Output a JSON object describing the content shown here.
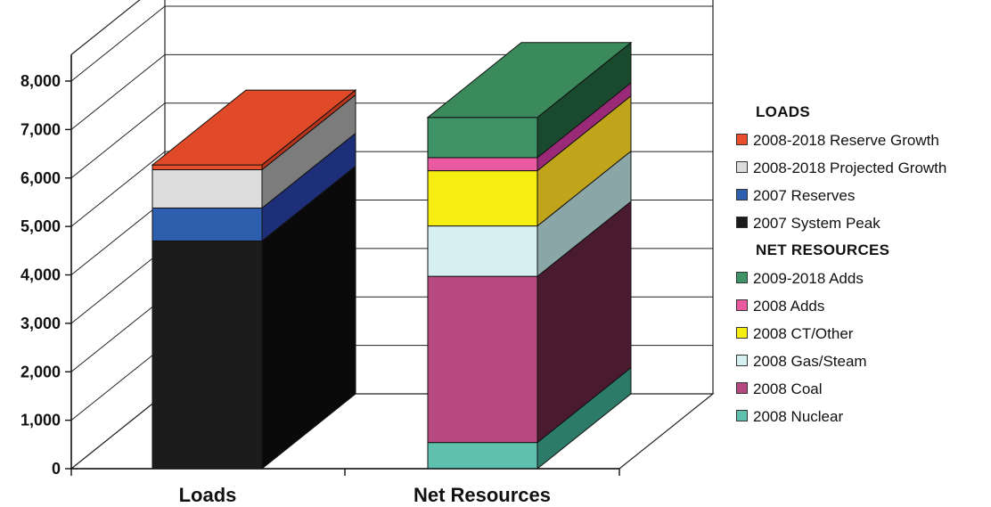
{
  "chart_data": {
    "type": "bar",
    "stacked": true,
    "three_d": true,
    "title": "",
    "xlabel": "",
    "ylabel": "",
    "ylim": [
      0,
      8000
    ],
    "yticks": [
      0,
      1000,
      2000,
      3000,
      4000,
      5000,
      6000,
      7000,
      8000
    ],
    "ytick_labels": [
      "0",
      "1,000",
      "2,000",
      "3,000",
      "4,000",
      "5,000",
      "6,000",
      "7,000",
      "8,000"
    ],
    "categories": [
      "Loads",
      "Net Resources"
    ],
    "grid": true,
    "legend_position": "right",
    "groups": [
      {
        "heading": "LOADS",
        "category_index": 0,
        "series": [
          {
            "name": "2007 System Peak",
            "value": 4700,
            "color": "#1c1c1c",
            "side": "#0a0a0a",
            "top": "#2a2a2a"
          },
          {
            "name": "2007 Reserves",
            "value": 680,
            "color": "#2e5fae",
            "side": "#1e2f7a",
            "top": "#3a6ac0"
          },
          {
            "name": "2008-2018 Projected Growth",
            "value": 790,
            "color": "#dcdcdc",
            "side": "#7c7c7c",
            "top": "#e8e8e8"
          },
          {
            "name": "2008-2018 Reserve Growth",
            "value": 100,
            "color": "#e84e2c",
            "side": "#b8341a",
            "top": "#e04a28"
          }
        ]
      },
      {
        "heading": "NET RESOURCES",
        "category_index": 1,
        "series": [
          {
            "name": "2008 Nuclear",
            "value": 540,
            "color": "#5fc0ae",
            "side": "#2c7a68",
            "top": "#6ccab8"
          },
          {
            "name": "2008 Coal",
            "value": 3430,
            "color": "#b64a80",
            "side": "#4a1a2e",
            "top": "#c05a8c"
          },
          {
            "name": "2008 Gas/Steam",
            "value": 1040,
            "color": "#d6f0f2",
            "side": "#8aa6a6",
            "top": "#e2f6f8"
          },
          {
            "name": "2008 CT/Other",
            "value": 1140,
            "color": "#f6ee10",
            "side": "#c0a41a",
            "top": "#f8f040"
          },
          {
            "name": "2008 Adds",
            "value": 270,
            "color": "#ea5aa0",
            "side": "#9a2a78",
            "top": "#f06ab0"
          },
          {
            "name": "2009-2018 Adds",
            "value": 830,
            "color": "#3e9466",
            "side": "#1a4a2e",
            "top": "#3a8a5c"
          }
        ]
      }
    ]
  }
}
